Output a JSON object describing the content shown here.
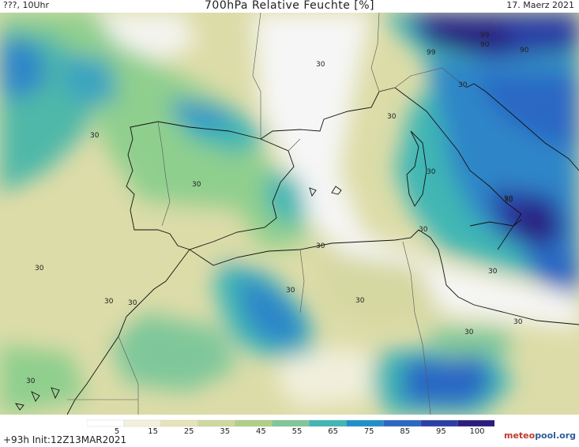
{
  "header": {
    "left": "???, 10Uhr",
    "title": "700hPa Relative Feuchte [%]",
    "date": "17. Maerz 2021"
  },
  "footer": {
    "run_info": "+93h Init:12Z13MAR2021",
    "brand_part1": "meteo",
    "brand_part2": "pool",
    "brand_suffix": ".org"
  },
  "colorbar": {
    "ticks": [
      "5",
      "15",
      "25",
      "35",
      "45",
      "55",
      "65",
      "75",
      "85",
      "95",
      "100"
    ],
    "colors": [
      "#ffffff",
      "#f3f0dc",
      "#e4e4b8",
      "#cfd89c",
      "#b0cf86",
      "#7fc79a",
      "#41b6b4",
      "#1f8fca",
      "#2a68c4",
      "#2a3fa6",
      "#2b1e7c"
    ]
  },
  "contour_labels": [
    "30",
    "30",
    "30",
    "30",
    "30",
    "30",
    "30",
    "30",
    "30",
    "30",
    "30",
    "30",
    "30",
    "30",
    "30",
    "30",
    "30",
    "30",
    "30",
    "30",
    "90",
    "90",
    "99",
    "99",
    "90",
    "90",
    "90"
  ]
}
